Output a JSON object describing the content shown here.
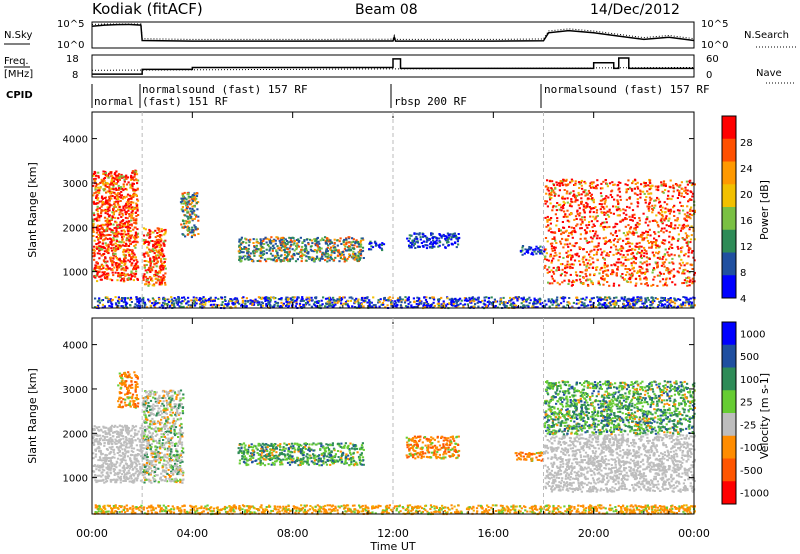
{
  "header": {
    "station": "Kodiak (fitACF)",
    "beam": "Beam 08",
    "date": "14/Dec/2012"
  },
  "top_panels": {
    "nsky_label": "N.Sky",
    "nsearch_label": "N.Search",
    "nsky_ticks": [
      "10^5",
      "10^0"
    ],
    "nsearch_ticks": [
      "10^5",
      "10^0"
    ],
    "freq_label": "Freq.",
    "freq_unit": "[MHz]",
    "freq_ticks": [
      "18",
      "8"
    ],
    "nave_label": "Nave",
    "nave_ticks": [
      "60",
      "0"
    ],
    "cpid_label": "CPID",
    "cpid_segments": [
      {
        "label": "normal",
        "start": 0.0
      },
      {
        "label": "normalsound (fast) 157 RF",
        "start": 2.0
      },
      {
        "label": "(fast) 151 RF",
        "start": 2.0
      },
      {
        "label": "rbsp 200 RF",
        "start": 12.0
      },
      {
        "label": "normalsound (fast) 157 RF",
        "start": 18.0
      }
    ]
  },
  "power_panel": {
    "ylabel": "Slant Range [km]",
    "ytick_labels": [
      "1000",
      "2000",
      "3000",
      "4000"
    ],
    "colorbar_label": "Power [dB]",
    "colorbar_ticks": [
      "28",
      "24",
      "20",
      "16",
      "12",
      "8",
      "4"
    ]
  },
  "velocity_panel": {
    "ylabel": "Slant Range [km]",
    "ytick_labels": [
      "1000",
      "2000",
      "3000",
      "4000"
    ],
    "colorbar_label": "Velocity [m s-1]",
    "colorbar_ticks": [
      "1000",
      "500",
      "100",
      "25",
      "-25",
      "-100",
      "-500",
      "-1000"
    ]
  },
  "xaxis": {
    "label": "Time UT",
    "tick_labels": [
      "00:00",
      "04:00",
      "08:00",
      "12:00",
      "16:00",
      "20:00",
      "00:00"
    ]
  },
  "colors": {
    "power_scale": [
      "#0000ff",
      "#2050a0",
      "#2e8b57",
      "#7ac043",
      "#f2c000",
      "#ff9900",
      "#ff5000",
      "#ff0000"
    ],
    "velocity_scale": [
      "#ff0000",
      "#ff5500",
      "#ff8c00",
      "#bdbdbd",
      "#66cc33",
      "#2e8b57",
      "#1f4fa0",
      "#0000ff"
    ],
    "ground_scatter": "#bdbdbd"
  },
  "chart_data": [
    {
      "type": "heatmap",
      "title": "Power",
      "xlabel": "Time UT",
      "ylabel": "Slant Range [km]",
      "xlim": [
        0,
        24
      ],
      "ylim": [
        180,
        4600
      ],
      "colorbar": {
        "label": "Power [dB]",
        "range": [
          0,
          30
        ],
        "ticks": [
          4,
          8,
          12,
          16,
          20,
          24,
          28
        ]
      },
      "regions": [
        {
          "t": [
            0.0,
            1.8
          ],
          "range": [
            800,
            3300
          ],
          "level": "strong (16-30 dB)"
        },
        {
          "t": [
            2.0,
            2.9
          ],
          "range": [
            700,
            2000
          ],
          "level": "strong (16-30 dB)"
        },
        {
          "t": [
            3.5,
            4.2
          ],
          "range": [
            1800,
            2800
          ],
          "level": "moderate (12-24 dB)"
        },
        {
          "t": [
            5.8,
            10.8
          ],
          "range": [
            1250,
            1800
          ],
          "level": "moderate (8-28 dB)"
        },
        {
          "t": [
            11.0,
            11.6
          ],
          "range": [
            1500,
            1700
          ],
          "level": "weak (4-12 dB)"
        },
        {
          "t": [
            12.5,
            14.6
          ],
          "range": [
            1550,
            1900
          ],
          "level": "weak (4-12 dB)"
        },
        {
          "t": [
            17.0,
            18.0
          ],
          "range": [
            1400,
            1600
          ],
          "level": "weak (4-12 dB)"
        },
        {
          "t": [
            18.0,
            24.0
          ],
          "range": [
            700,
            3100
          ],
          "level": "strong (8-30 dB)"
        },
        {
          "t": [
            0.0,
            24.0
          ],
          "range": [
            200,
            450
          ],
          "level": "weak near-range (4-16 dB)"
        }
      ]
    },
    {
      "type": "heatmap",
      "title": "Velocity",
      "xlabel": "Time UT",
      "ylabel": "Slant Range [km]",
      "xlim": [
        0,
        24
      ],
      "ylim": [
        180,
        4600
      ],
      "colorbar": {
        "label": "Velocity [m s-1]",
        "ticks": [
          -1000,
          -500,
          -100,
          -25,
          25,
          100,
          500,
          1000
        ]
      },
      "regions": [
        {
          "t": [
            0.0,
            2.0
          ],
          "range": [
            900,
            2200
          ],
          "category": "ground scatter"
        },
        {
          "t": [
            1.0,
            1.8
          ],
          "range": [
            2600,
            3400
          ],
          "category": "-100 to -500 m/s"
        },
        {
          "t": [
            2.0,
            3.6
          ],
          "range": [
            900,
            3000
          ],
          "category": "ground scatter / mixed"
        },
        {
          "t": [
            5.8,
            10.8
          ],
          "range": [
            1300,
            1800
          ],
          "category": "25 to 500 m/s"
        },
        {
          "t": [
            12.5,
            14.6
          ],
          "range": [
            1450,
            1950
          ],
          "category": "-100 to -500 m/s"
        },
        {
          "t": [
            16.8,
            18.0
          ],
          "range": [
            1400,
            1600
          ],
          "category": "-100 to -500 m/s"
        },
        {
          "t": [
            18.0,
            24.0
          ],
          "range": [
            700,
            2000
          ],
          "category": "ground scatter"
        },
        {
          "t": [
            18.0,
            24.0
          ],
          "range": [
            2000,
            3200
          ],
          "category": "25 to 500 m/s"
        },
        {
          "t": [
            0.0,
            24.0
          ],
          "range": [
            200,
            400
          ],
          "category": "-25 to -100 m/s"
        }
      ]
    }
  ]
}
